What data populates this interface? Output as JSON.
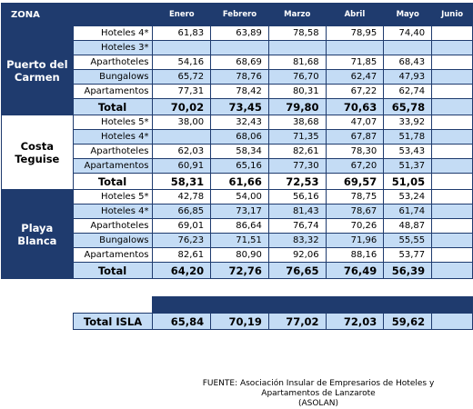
{
  "header": {
    "zona": "ZONA",
    "months": [
      "Enero",
      "Febrero",
      "Marzo",
      "Abril",
      "Mayo",
      "Junio"
    ]
  },
  "zones": [
    {
      "name_lines": [
        "Puerto del",
        "Carmen"
      ],
      "theme": "dark",
      "rows": [
        {
          "cat": "Hoteles 4*",
          "vals": [
            "61,83",
            "63,89",
            "78,58",
            "78,95",
            "74,40",
            ""
          ]
        },
        {
          "cat": "Hoteles 3*",
          "vals": [
            "",
            "",
            "",
            "",
            "",
            ""
          ]
        },
        {
          "cat": "Aparthoteles",
          "vals": [
            "54,16",
            "68,69",
            "81,68",
            "71,85",
            "68,43",
            ""
          ]
        },
        {
          "cat": "Bungalows",
          "vals": [
            "65,72",
            "78,76",
            "76,70",
            "62,47",
            "47,93",
            ""
          ]
        },
        {
          "cat": "Apartamentos",
          "vals": [
            "77,31",
            "78,42",
            "80,31",
            "67,22",
            "62,74",
            ""
          ]
        }
      ],
      "total": {
        "label": "Total",
        "vals": [
          "70,02",
          "73,45",
          "79,80",
          "70,63",
          "65,78",
          ""
        ]
      }
    },
    {
      "name_lines": [
        "Costa",
        "Teguise"
      ],
      "theme": "light",
      "rows": [
        {
          "cat": "Hoteles 5*",
          "vals": [
            "38,00",
            "32,43",
            "38,68",
            "47,07",
            "33,92",
            ""
          ]
        },
        {
          "cat": "Hoteles 4*",
          "vals": [
            "",
            "68,06",
            "71,35",
            "67,87",
            "51,78",
            ""
          ]
        },
        {
          "cat": "Aparthoteles",
          "vals": [
            "62,03",
            "58,34",
            "82,61",
            "78,30",
            "53,43",
            ""
          ]
        },
        {
          "cat": "Apartamentos",
          "vals": [
            "60,91",
            "65,16",
            "77,30",
            "67,20",
            "51,37",
            ""
          ]
        }
      ],
      "total": {
        "label": "Total",
        "vals": [
          "58,31",
          "61,66",
          "72,53",
          "69,57",
          "51,05",
          ""
        ]
      }
    },
    {
      "name_lines": [
        "Playa",
        "Blanca"
      ],
      "theme": "dark",
      "rows": [
        {
          "cat": "Hoteles 5*",
          "vals": [
            "42,78",
            "54,00",
            "56,16",
            "78,75",
            "53,24",
            ""
          ]
        },
        {
          "cat": "Hoteles 4*",
          "vals": [
            "66,85",
            "73,17",
            "81,43",
            "78,67",
            "61,74",
            ""
          ]
        },
        {
          "cat": "Aparthoteles",
          "vals": [
            "69,01",
            "86,64",
            "76,74",
            "70,26",
            "48,87",
            ""
          ]
        },
        {
          "cat": "Bungalows",
          "vals": [
            "76,23",
            "71,51",
            "83,32",
            "71,96",
            "55,55",
            ""
          ]
        },
        {
          "cat": "Apartamentos",
          "vals": [
            "82,61",
            "80,90",
            "92,06",
            "88,16",
            "53,77",
            ""
          ]
        }
      ],
      "total": {
        "label": "Total",
        "vals": [
          "64,20",
          "72,76",
          "76,65",
          "76,49",
          "56,39",
          ""
        ]
      }
    }
  ],
  "isla": {
    "label": "Total ISLA",
    "vals": [
      "65,84",
      "70,19",
      "77,02",
      "72,03",
      "59,62",
      ""
    ]
  },
  "source": {
    "line1": "FUENTE: Asociación Insular de Empresarios de Hoteles y Apartamentos de Lanzarote",
    "line2": "(ASOLAN)"
  },
  "colors": {
    "navy": "#1f3b6e",
    "light_blue": "#c4dcf5",
    "white": "#ffffff"
  }
}
